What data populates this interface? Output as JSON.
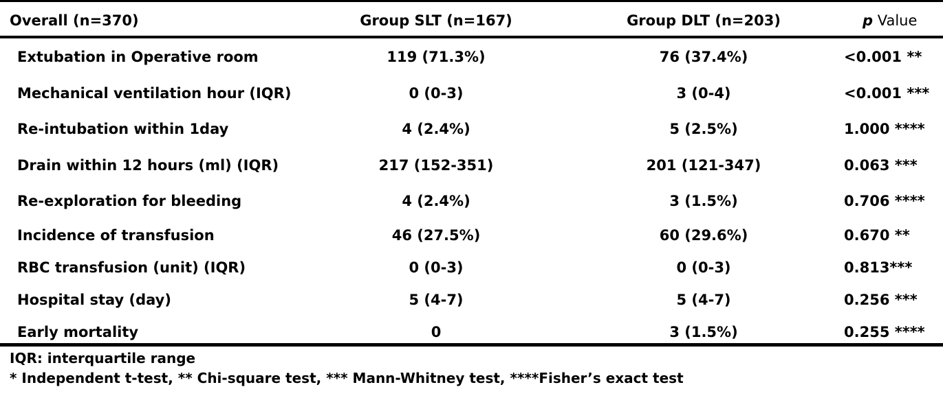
{
  "table": {
    "headers": {
      "col0": "Overall (n=370)",
      "col1": "Group SLT (n=167)",
      "col2": "Group DLT (n=203)",
      "col3_p": "p",
      "col3_rest": " Value"
    },
    "rows": [
      {
        "label": "Extubation in Operative room",
        "slt": "119  (71.3%)",
        "dlt": "76  (37.4%)",
        "p": "<0.001  **"
      },
      {
        "label": "Mechanical ventilation hour (IQR)",
        "slt": "0 (0-3)",
        "dlt": "3 (0-4)",
        "p": "<0.001  ***"
      },
      {
        "label": "Re-intubation within 1day",
        "slt": "4 (2.4%)",
        "dlt": "5 (2.5%)",
        "p": "1.000  ****"
      },
      {
        "label": "Drain within 12 hours (ml) (IQR)",
        "slt": "217  (152-351)",
        "dlt": "201  (121-347)",
        "p": "0.063  ***"
      },
      {
        "label": "Re-exploration for bleeding",
        "slt": "4 (2.4%)",
        "dlt": "3 (1.5%)",
        "p": "0.706  ****"
      },
      {
        "label": "Incidence of transfusion",
        "slt": "46  (27.5%)",
        "dlt": "60  (29.6%)",
        "p": "0.670  **"
      },
      {
        "label": "RBC transfusion (unit) (IQR)",
        "slt": "0 (0-3)",
        "dlt": "0 (0-3)",
        "p": "0.813***"
      },
      {
        "label": "Hospital stay (day)",
        "slt": "5 (4-7)",
        "dlt": "5 (4-7)",
        "p": "0.256  ***"
      },
      {
        "label": "Early mortality",
        "slt": "0",
        "dlt": "3 (1.5%)",
        "p": "0.255  ****"
      }
    ]
  },
  "footnotes": {
    "line1": "IQR: interquartile range",
    "line2": "* Independent t-test, ** Chi-square test, *** Mann-Whitney test, ****Fisher’s exact test"
  }
}
